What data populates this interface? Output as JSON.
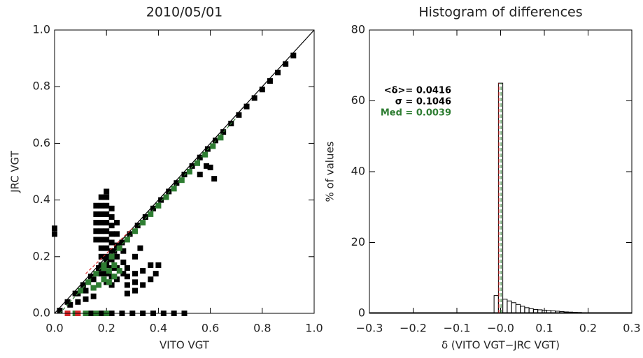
{
  "chart_data": [
    {
      "type": "scatter",
      "title": "2010/05/01",
      "x_label": "VITO VGT",
      "y_label": "JRC VGT",
      "xlim": [
        0,
        1
      ],
      "ylim": [
        0,
        1
      ],
      "xticks": [
        {
          "value": 0,
          "label": "0.0"
        },
        0.2,
        0.4,
        0.6,
        0.8,
        {
          "value": 1,
          "label": "1.0"
        }
      ],
      "yticks": [
        {
          "value": 0,
          "label": "0.0"
        },
        0.2,
        0.4,
        0.6,
        0.8,
        {
          "value": 1,
          "label": "1.0"
        }
      ],
      "series": [
        {
          "color": "#000000",
          "x": [
            0.02,
            0.05,
            0.08,
            0.11,
            0.14,
            0.17,
            0.2,
            0.23,
            0.26,
            0.29,
            0.32,
            0.35,
            0.38,
            0.41,
            0.44,
            0.47,
            0.5,
            0.53,
            0.56,
            0.59,
            0.62,
            0.65,
            0.68,
            0.71,
            0.74,
            0.77,
            0.8,
            0.83,
            0.86,
            0.89,
            0.92,
            0.16,
            0.16,
            0.16,
            0.16,
            0.16,
            0.18,
            0.18,
            0.18,
            0.18,
            0.18,
            0.18,
            0.18,
            0.18,
            0.18,
            0.18,
            0.2,
            0.2,
            0.2,
            0.2,
            0.2,
            0.2,
            0.2,
            0.2,
            0.2,
            0.2,
            0.2,
            0.2,
            0.22,
            0.22,
            0.22,
            0.22,
            0.22,
            0.22,
            0.22,
            0.22,
            0.22,
            0.22,
            0.24,
            0.24,
            0.24,
            0.24,
            0.24,
            0.24,
            0.265,
            0.265,
            0.265,
            0.06,
            0.09,
            0.09,
            0.12,
            0.12,
            0.15,
            0.15,
            0.15,
            0.28,
            0.28,
            0.28,
            0.28,
            0.31,
            0.31,
            0.31,
            0.31,
            0.33,
            0.34,
            0.34,
            0.37,
            0.37,
            0.39,
            0.4,
            0.14,
            0.18,
            0.22,
            0.26,
            0.3,
            0.34,
            0.38,
            0.42,
            0.46,
            0.5,
            0.0,
            0.0,
            0.585,
            0.6,
            0.56,
            0.615
          ],
          "y": [
            0.01,
            0.04,
            0.07,
            0.1,
            0.13,
            0.16,
            0.19,
            0.22,
            0.25,
            0.28,
            0.31,
            0.34,
            0.37,
            0.4,
            0.43,
            0.46,
            0.49,
            0.52,
            0.55,
            0.58,
            0.61,
            0.64,
            0.67,
            0.7,
            0.73,
            0.76,
            0.79,
            0.82,
            0.85,
            0.88,
            0.91,
            0.26,
            0.29,
            0.32,
            0.35,
            0.38,
            0.14,
            0.17,
            0.2,
            0.23,
            0.26,
            0.29,
            0.32,
            0.35,
            0.38,
            0.41,
            0.11,
            0.14,
            0.17,
            0.2,
            0.23,
            0.26,
            0.29,
            0.32,
            0.35,
            0.38,
            0.41,
            0.43,
            0.1,
            0.13,
            0.16,
            0.19,
            0.22,
            0.25,
            0.28,
            0.31,
            0.34,
            0.37,
            0.12,
            0.16,
            0.2,
            0.24,
            0.28,
            0.32,
            0.14,
            0.18,
            0.22,
            0.03,
            0.04,
            0.07,
            0.05,
            0.08,
            0.06,
            0.09,
            0.12,
            0.07,
            0.1,
            0.13,
            0.16,
            0.08,
            0.11,
            0.14,
            0.2,
            0.23,
            0.1,
            0.15,
            0.12,
            0.17,
            0.14,
            0.17,
            0,
            0,
            0,
            0,
            0,
            0,
            0,
            0,
            0,
            0,
            0.28,
            0.3,
            0.52,
            0.515,
            0.49,
            0.475
          ]
        },
        {
          "color": "#2e7d32",
          "x": [
            0.1,
            0.13,
            0.16,
            0.19,
            0.22,
            0.25,
            0.28,
            0.31,
            0.34,
            0.37,
            0.4,
            0.43,
            0.46,
            0.49,
            0.52,
            0.55,
            0.58,
            0.61,
            0.64,
            0.17,
            0.19,
            0.21,
            0.21,
            0.23,
            0.23,
            0.25,
            0.19,
            0.15,
            0.08,
            0.12,
            0.16,
            0.2
          ],
          "y": [
            0.08,
            0.11,
            0.14,
            0.17,
            0.2,
            0.23,
            0.26,
            0.29,
            0.32,
            0.35,
            0.38,
            0.41,
            0.44,
            0.47,
            0.5,
            0.53,
            0.56,
            0.59,
            0.62,
            0.1,
            0.12,
            0.11,
            0.15,
            0.13,
            0.17,
            0.15,
            0.16,
            0.09,
            0,
            0,
            0,
            0
          ]
        },
        {
          "color": "#d62728",
          "x": [
            0.05,
            0.09
          ],
          "y": [
            0,
            0
          ]
        }
      ],
      "lines": [
        {
          "color": "#000000",
          "style": "solid",
          "x": [
            0,
            1
          ],
          "y": [
            0,
            1
          ]
        },
        {
          "color": "#2e7d32",
          "style": "dashed",
          "x": [
            0.02,
            0.7
          ],
          "y": [
            0.0,
            0.69
          ]
        },
        {
          "color": "#d62728",
          "style": "dashed",
          "x": [
            0.12,
            0.3
          ],
          "y": [
            0.14,
            0.3
          ]
        }
      ]
    },
    {
      "type": "histogram",
      "title": "Histogram of differences",
      "x_label": "δ (VITO VGT−JRC VGT)",
      "y_label": "% of values",
      "xlim": [
        -0.3,
        0.3
      ],
      "ylim": [
        0,
        80
      ],
      "xticks": [
        {
          "value": -0.3,
          "label": "−0.3"
        },
        {
          "value": -0.2,
          "label": "−0.2"
        },
        {
          "value": -0.1,
          "label": "−0.1"
        },
        {
          "value": 0,
          "label": "−0.0"
        },
        0.1,
        0.2,
        0.3
      ],
      "yticks": [
        0,
        20,
        40,
        60,
        80
      ],
      "bins": [
        -0.015,
        -0.005,
        0.005,
        0.015,
        0.025,
        0.035,
        0.045,
        0.055,
        0.065,
        0.075,
        0.085,
        0.095,
        0.105,
        0.115,
        0.125,
        0.135,
        0.145,
        0.155,
        0.165,
        0.175,
        0.185,
        0.195,
        0.205
      ],
      "values": [
        5,
        65,
        4,
        3.5,
        3,
        2.5,
        2,
        1.6,
        1.3,
        1.1,
        1.0,
        0.9,
        0.8,
        0.7,
        0.6,
        0.5,
        0.4,
        0.35,
        0.3,
        0.25,
        0.2,
        0.15
      ],
      "color": "#000000",
      "vlines": [
        {
          "x": -0.004,
          "color": "#d62728"
        },
        {
          "x": 0.001,
          "color": "#2e7d32"
        }
      ],
      "annotations": [
        {
          "text": "<δ>= 0.0416",
          "color": "#000000"
        },
        {
          "text": "σ = 0.1046",
          "color": "#000000"
        },
        {
          "text": "Med = 0.0039",
          "color": "#2e7d32"
        }
      ]
    }
  ]
}
